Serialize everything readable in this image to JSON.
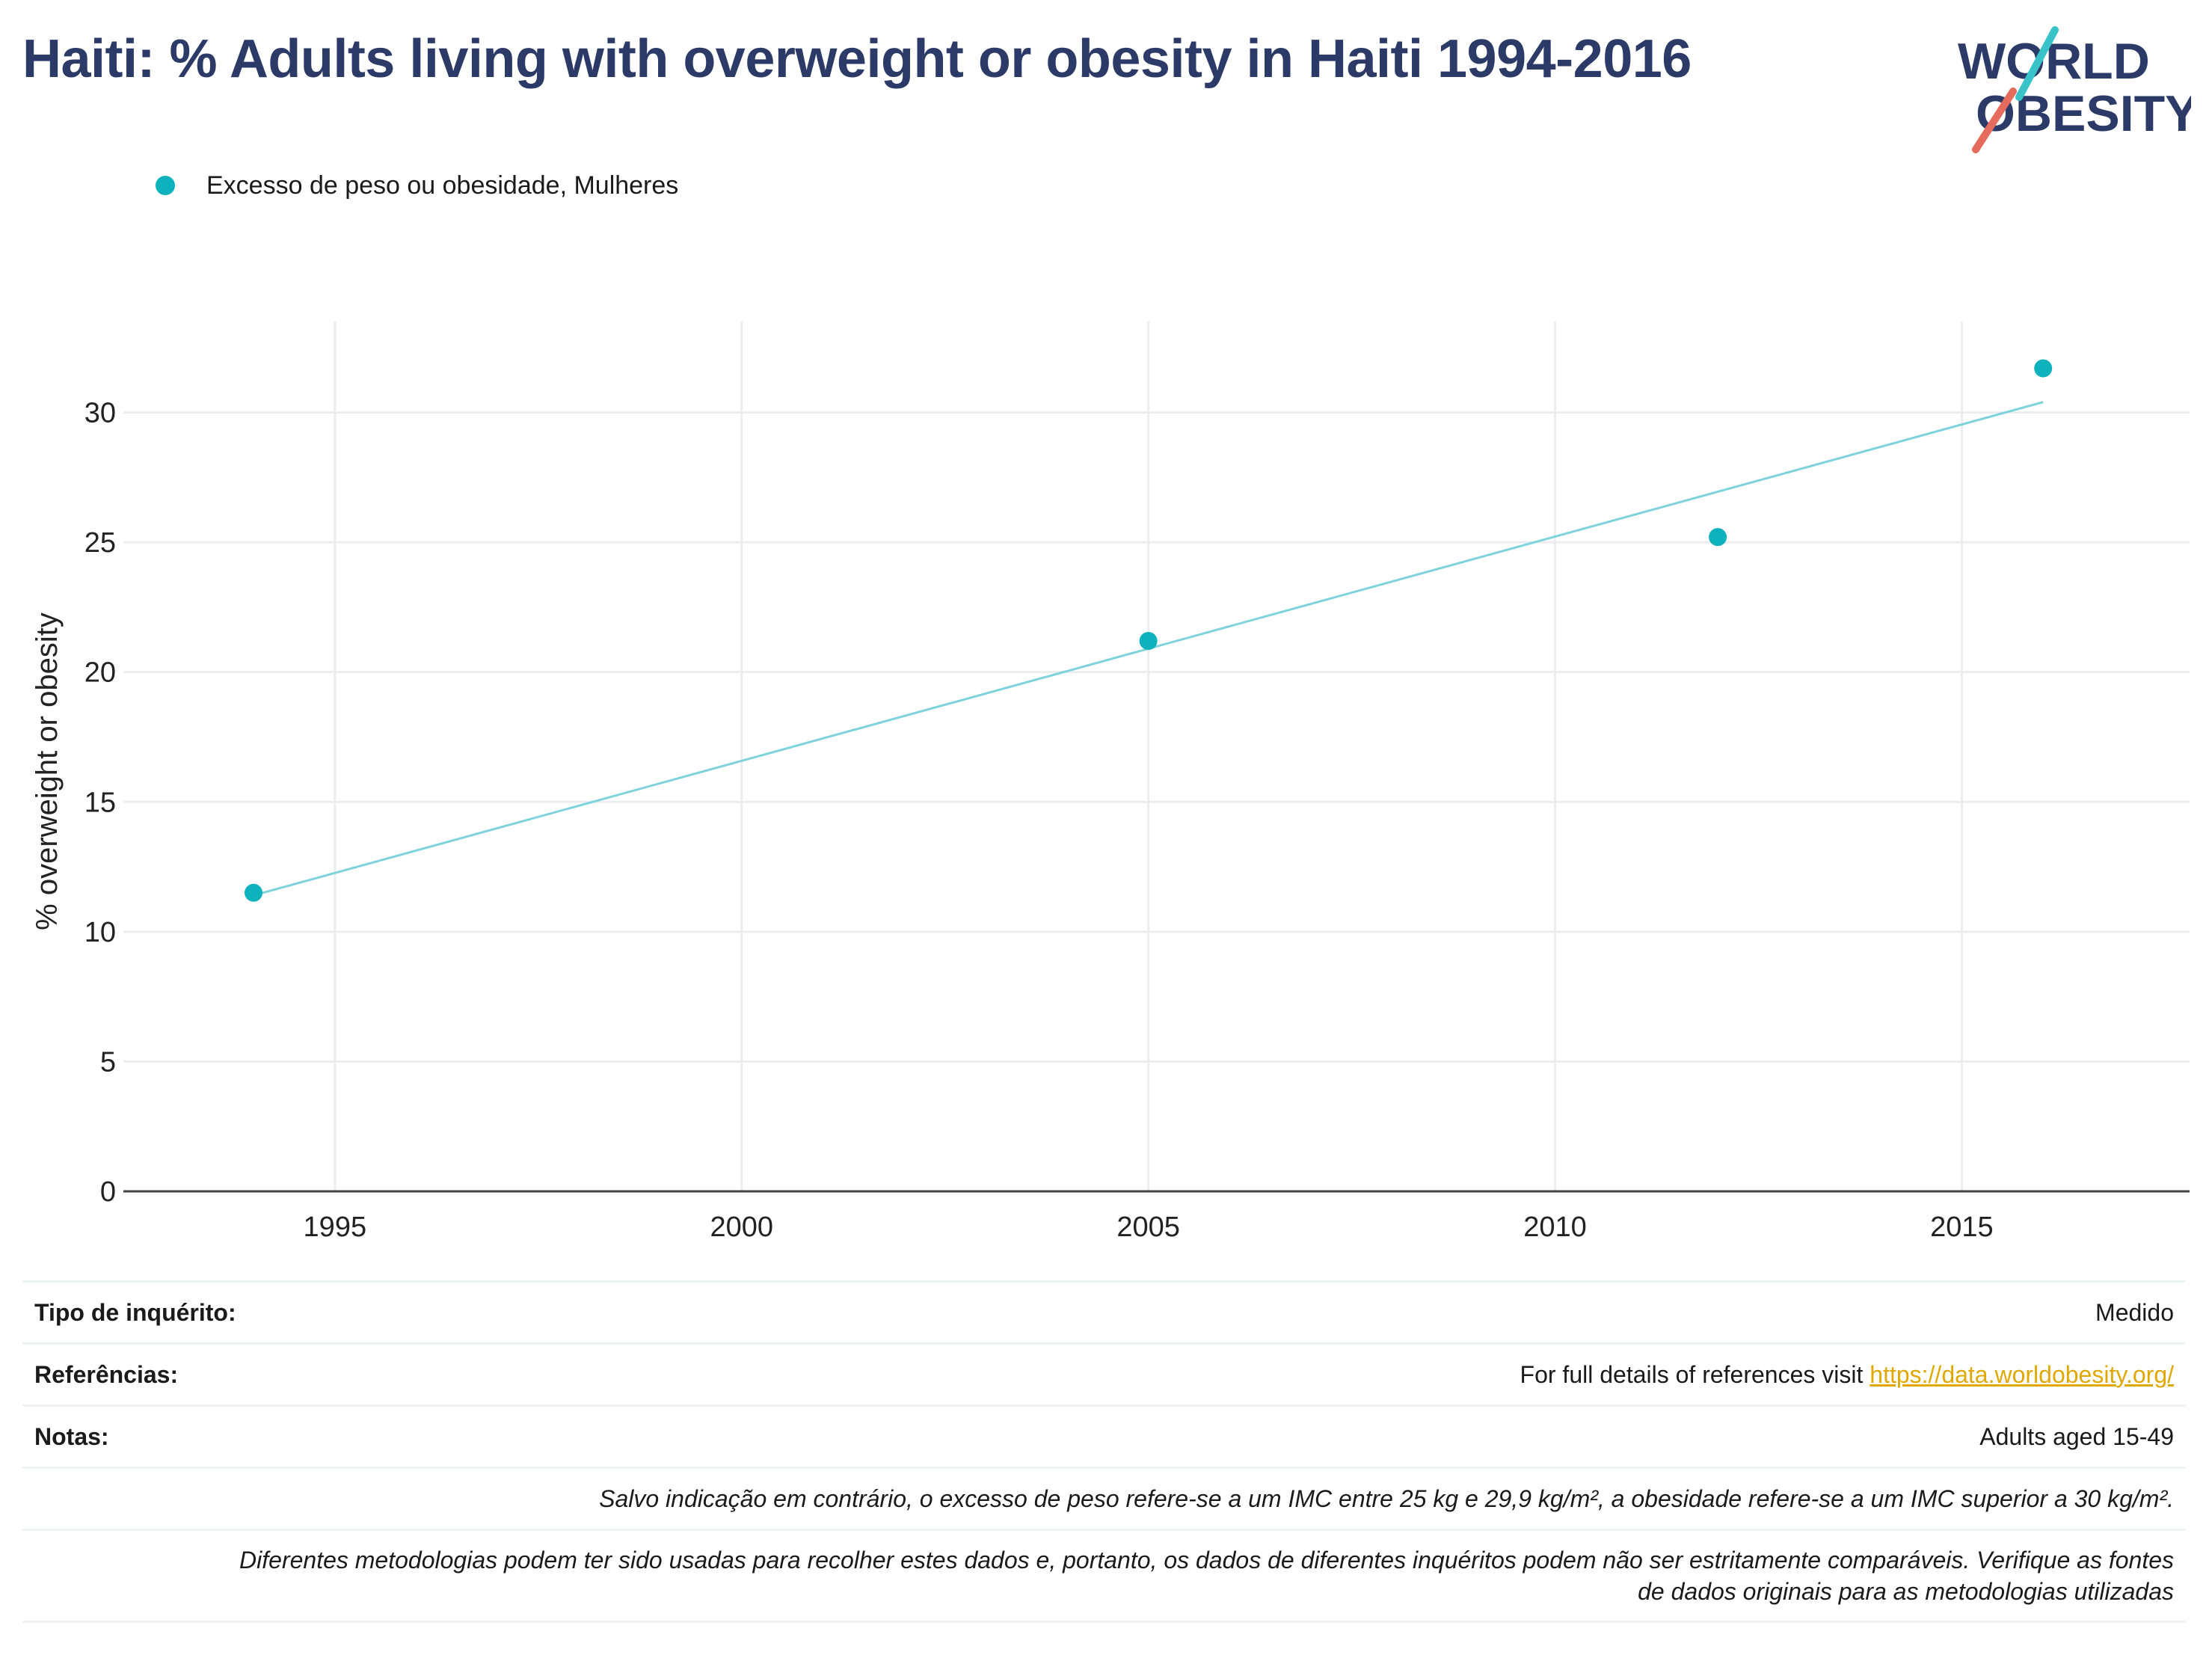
{
  "title": "Haiti: % Adults living with overweight or obesity in Haiti 1994-2016",
  "logo": {
    "line1": "WORLD",
    "line2": "OBESITY"
  },
  "colors": {
    "title": "#2b3a67",
    "series": "#0eb2bd",
    "trend": "#7fd3db",
    "link": "#e0a800",
    "logo_slash_teal": "#39c3c9",
    "logo_slash_red": "#e56b5d"
  },
  "chart_data": {
    "type": "scatter",
    "ylabel": "% overweight or obesity",
    "xlabel": "",
    "xlim": [
      1992.4,
      2017.8
    ],
    "ylim": [
      0,
      33.5
    ],
    "x_ticks": [
      1995,
      2000,
      2005,
      2010,
      2015
    ],
    "y_ticks": [
      0,
      5,
      10,
      15,
      20,
      25,
      30
    ],
    "grid": true,
    "legend_position": "top-left",
    "series": [
      {
        "name": "Excesso de peso ou obesidade, Mulheres",
        "points": [
          {
            "x": 1994,
            "y": 11.5
          },
          {
            "x": 2005,
            "y": 21.2
          },
          {
            "x": 2012,
            "y": 25.2
          },
          {
            "x": 2016,
            "y": 31.7
          }
        ]
      }
    ],
    "trendline": {
      "x": [
        1994,
        2016
      ],
      "y": [
        11.4,
        30.4
      ]
    }
  },
  "meta": {
    "survey_type_label": "Tipo de inquérito:",
    "survey_type_value": "Medido",
    "references_label": "Referências:",
    "references_text": "For full details of references visit ",
    "references_link": "https://data.worldobesity.org/",
    "notes_label": "Notas:",
    "notes_value": "Adults aged 15-49",
    "note_bmi": "Salvo indicação em contrário, o excesso de peso refere-se a um IMC entre 25 kg e 29,9 kg/m², a obesidade refere-se a um IMC superior a 30 kg/m².",
    "note_methods_1": "Diferentes metodologias podem ter sido usadas para recolher estes dados e, portanto, os dados de diferentes inquéritos podem não ser estritamente comparáveis. Verifique as fontes",
    "note_methods_2": "de dados originais para as metodologias utilizadas"
  }
}
